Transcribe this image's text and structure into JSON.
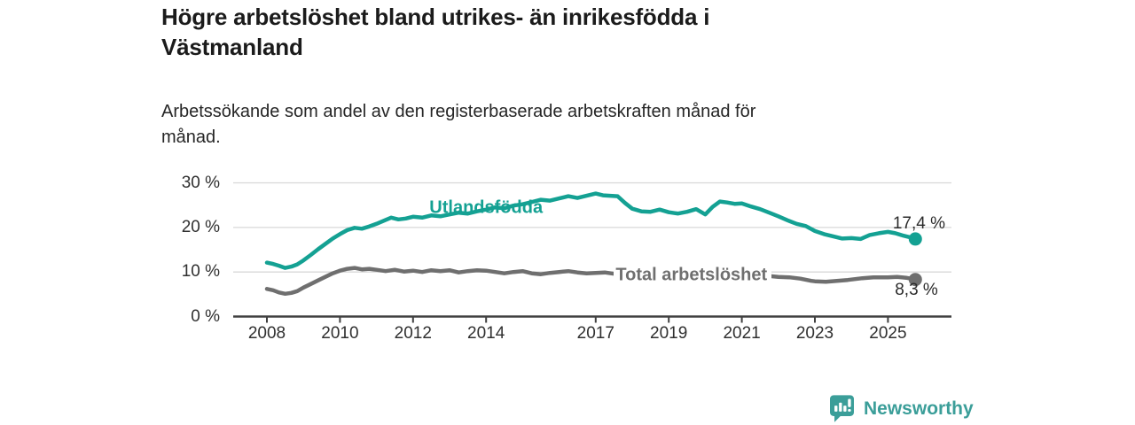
{
  "header": {
    "title": "Högre arbetslöshet bland utrikes- än inrikesfödda i\nVästmanland",
    "subtitle": "Arbetssökande som andel av den registerbaserade arbetskraften månad för\nmånad."
  },
  "chart_data": {
    "type": "line",
    "title": "Högre arbetslöshet bland utrikes- än inrikesfödda i Västmanland",
    "subtitle": "Arbetssökande som andel av den registerbaserade arbetskraften månad för månad.",
    "xlabel": "",
    "ylabel": "",
    "grid": "horizontal",
    "x_axis": {
      "ticks": [
        2008,
        2010,
        2012,
        2014,
        2017,
        2019,
        2021,
        2023,
        2025
      ],
      "range": [
        2007.1,
        2026.7
      ]
    },
    "y_axis": {
      "ticks": [
        0,
        10,
        20,
        30
      ],
      "tick_suffix": " %",
      "range": [
        0,
        30
      ]
    },
    "colors": {
      "grid": "#d8d8d8",
      "axis": "#404040",
      "tick_text": "#303030"
    },
    "series": [
      {
        "name": "Utlandsfödda",
        "color": "#14a193",
        "end_label": "17,4 %",
        "end_value": 17.4,
        "label_anchor": {
          "year": 2014.0,
          "value": 24.4,
          "boxed": false
        },
        "end_label_anchor": {
          "year": 2025.85,
          "value": 20.7
        },
        "points": [
          [
            2008.0,
            12.1
          ],
          [
            2008.17,
            11.8
          ],
          [
            2008.33,
            11.4
          ],
          [
            2008.5,
            10.9
          ],
          [
            2008.67,
            11.2
          ],
          [
            2008.83,
            11.7
          ],
          [
            2009.0,
            12.6
          ],
          [
            2009.2,
            13.8
          ],
          [
            2009.4,
            15.1
          ],
          [
            2009.6,
            16.3
          ],
          [
            2009.8,
            17.5
          ],
          [
            2010.0,
            18.5
          ],
          [
            2010.2,
            19.4
          ],
          [
            2010.4,
            19.9
          ],
          [
            2010.6,
            19.7
          ],
          [
            2010.8,
            20.2
          ],
          [
            2011.0,
            20.8
          ],
          [
            2011.2,
            21.5
          ],
          [
            2011.4,
            22.2
          ],
          [
            2011.6,
            21.8
          ],
          [
            2011.8,
            22.0
          ],
          [
            2012.0,
            22.4
          ],
          [
            2012.25,
            22.2
          ],
          [
            2012.5,
            22.7
          ],
          [
            2012.75,
            22.5
          ],
          [
            2013.0,
            22.9
          ],
          [
            2013.25,
            23.3
          ],
          [
            2013.5,
            23.1
          ],
          [
            2013.75,
            23.6
          ],
          [
            2014.0,
            24.0
          ],
          [
            2014.25,
            24.5
          ],
          [
            2014.5,
            24.3
          ],
          [
            2014.75,
            24.9
          ],
          [
            2015.0,
            25.2
          ],
          [
            2015.25,
            25.7
          ],
          [
            2015.5,
            26.2
          ],
          [
            2015.75,
            26.0
          ],
          [
            2016.0,
            26.5
          ],
          [
            2016.25,
            27.0
          ],
          [
            2016.5,
            26.6
          ],
          [
            2016.75,
            27.1
          ],
          [
            2017.0,
            27.6
          ],
          [
            2017.2,
            27.2
          ],
          [
            2017.4,
            27.1
          ],
          [
            2017.6,
            27.0
          ],
          [
            2017.8,
            25.5
          ],
          [
            2018.0,
            24.2
          ],
          [
            2018.25,
            23.6
          ],
          [
            2018.5,
            23.5
          ],
          [
            2018.75,
            24.0
          ],
          [
            2019.0,
            23.4
          ],
          [
            2019.25,
            23.1
          ],
          [
            2019.5,
            23.5
          ],
          [
            2019.75,
            24.1
          ],
          [
            2020.0,
            22.9
          ],
          [
            2020.2,
            24.6
          ],
          [
            2020.4,
            25.8
          ],
          [
            2020.6,
            25.6
          ],
          [
            2020.8,
            25.3
          ],
          [
            2021.0,
            25.4
          ],
          [
            2021.25,
            24.7
          ],
          [
            2021.5,
            24.1
          ],
          [
            2021.75,
            23.3
          ],
          [
            2022.0,
            22.5
          ],
          [
            2022.25,
            21.6
          ],
          [
            2022.5,
            20.8
          ],
          [
            2022.75,
            20.3
          ],
          [
            2023.0,
            19.2
          ],
          [
            2023.25,
            18.5
          ],
          [
            2023.5,
            18.0
          ],
          [
            2023.75,
            17.5
          ],
          [
            2024.0,
            17.6
          ],
          [
            2024.25,
            17.4
          ],
          [
            2024.5,
            18.3
          ],
          [
            2024.75,
            18.7
          ],
          [
            2025.0,
            19.0
          ],
          [
            2025.2,
            18.7
          ],
          [
            2025.4,
            18.2
          ],
          [
            2025.6,
            17.8
          ],
          [
            2025.75,
            17.4
          ]
        ]
      },
      {
        "name": "Total arbetslöshet",
        "color": "#6f6f6f",
        "end_label": "8,3 %",
        "end_value": 8.3,
        "label_anchor": {
          "year": 2017.5,
          "value": 9.3,
          "boxed": true
        },
        "end_label_anchor": {
          "year": 2025.78,
          "value": 5.8
        },
        "points": [
          [
            2008.0,
            6.2
          ],
          [
            2008.17,
            5.9
          ],
          [
            2008.33,
            5.4
          ],
          [
            2008.5,
            5.1
          ],
          [
            2008.67,
            5.3
          ],
          [
            2008.83,
            5.7
          ],
          [
            2009.0,
            6.5
          ],
          [
            2009.2,
            7.3
          ],
          [
            2009.4,
            8.1
          ],
          [
            2009.6,
            8.9
          ],
          [
            2009.8,
            9.7
          ],
          [
            2010.0,
            10.3
          ],
          [
            2010.2,
            10.7
          ],
          [
            2010.4,
            10.9
          ],
          [
            2010.6,
            10.6
          ],
          [
            2010.8,
            10.7
          ],
          [
            2011.0,
            10.5
          ],
          [
            2011.25,
            10.2
          ],
          [
            2011.5,
            10.5
          ],
          [
            2011.75,
            10.1
          ],
          [
            2012.0,
            10.3
          ],
          [
            2012.25,
            10.0
          ],
          [
            2012.5,
            10.4
          ],
          [
            2012.75,
            10.2
          ],
          [
            2013.0,
            10.4
          ],
          [
            2013.25,
            9.9
          ],
          [
            2013.5,
            10.2
          ],
          [
            2013.75,
            10.4
          ],
          [
            2014.0,
            10.3
          ],
          [
            2014.25,
            10.0
          ],
          [
            2014.5,
            9.7
          ],
          [
            2014.75,
            10.0
          ],
          [
            2015.0,
            10.2
          ],
          [
            2015.25,
            9.7
          ],
          [
            2015.5,
            9.5
          ],
          [
            2015.75,
            9.8
          ],
          [
            2016.0,
            10.0
          ],
          [
            2016.25,
            10.2
          ],
          [
            2016.5,
            9.9
          ],
          [
            2016.75,
            9.7
          ],
          [
            2017.0,
            9.8
          ],
          [
            2017.25,
            9.9
          ],
          [
            2017.5,
            9.6
          ],
          [
            2017.75,
            9.4
          ],
          [
            2018.0,
            9.5
          ],
          [
            2018.5,
            9.2
          ],
          [
            2019.0,
            9.1
          ],
          [
            2019.5,
            9.0
          ],
          [
            2020.0,
            9.6
          ],
          [
            2020.3,
            10.4
          ],
          [
            2020.6,
            10.3
          ],
          [
            2021.0,
            9.9
          ],
          [
            2021.5,
            9.3
          ],
          [
            2022.0,
            8.9
          ],
          [
            2022.3,
            8.8
          ],
          [
            2022.6,
            8.5
          ],
          [
            2022.9,
            8.0
          ],
          [
            2023.0,
            7.9
          ],
          [
            2023.3,
            7.8
          ],
          [
            2023.6,
            8.0
          ],
          [
            2023.9,
            8.2
          ],
          [
            2024.0,
            8.3
          ],
          [
            2024.3,
            8.6
          ],
          [
            2024.6,
            8.8
          ],
          [
            2024.9,
            8.8
          ],
          [
            2025.0,
            8.8
          ],
          [
            2025.25,
            8.9
          ],
          [
            2025.5,
            8.7
          ],
          [
            2025.75,
            8.3
          ]
        ]
      }
    ]
  },
  "footer": {
    "brand": "Newsworthy",
    "brand_color": "#3b9e99"
  }
}
